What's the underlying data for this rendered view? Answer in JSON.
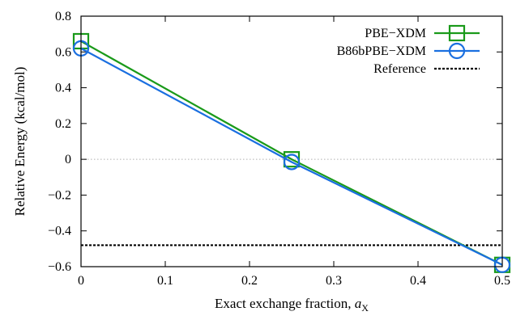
{
  "chart_data": {
    "type": "line",
    "xlabel_text": "Exact exchange fraction,",
    "xlabel_symbol": "a",
    "xlabel_subscript": "X",
    "ylabel": "Relative Energy (kcal/mol)",
    "xlim": [
      0,
      0.5
    ],
    "ylim": [
      -0.6,
      0.8
    ],
    "xticks": [
      0,
      0.1,
      0.2,
      0.3,
      0.4,
      0.5
    ],
    "xtick_labels": [
      "0",
      "0.1",
      "0.2",
      "0.3",
      "0.4",
      "0.5"
    ],
    "yticks": [
      -0.6,
      -0.4,
      -0.2,
      0,
      0.2,
      0.4,
      0.6,
      0.8
    ],
    "ytick_labels": [
      "−0.6",
      "−0.4",
      "−0.2",
      "0",
      "0.2",
      "0.4",
      "0.6",
      "0.8"
    ],
    "grid": false,
    "zero_line": true,
    "legend_position": "top-right",
    "series": [
      {
        "name": "PBE−XDM",
        "color": "#1a9a1a",
        "marker": "square",
        "x": [
          0,
          0.25,
          0.5
        ],
        "y": [
          0.66,
          0.0,
          -0.59
        ]
      },
      {
        "name": "B86bPBE−XDM",
        "color": "#1a6fe0",
        "marker": "circle",
        "x": [
          0,
          0.25,
          0.5
        ],
        "y": [
          0.62,
          -0.015,
          -0.59
        ]
      }
    ],
    "reference": {
      "name": "Reference",
      "color": "#000000",
      "style": "dotted",
      "y": -0.48
    }
  }
}
